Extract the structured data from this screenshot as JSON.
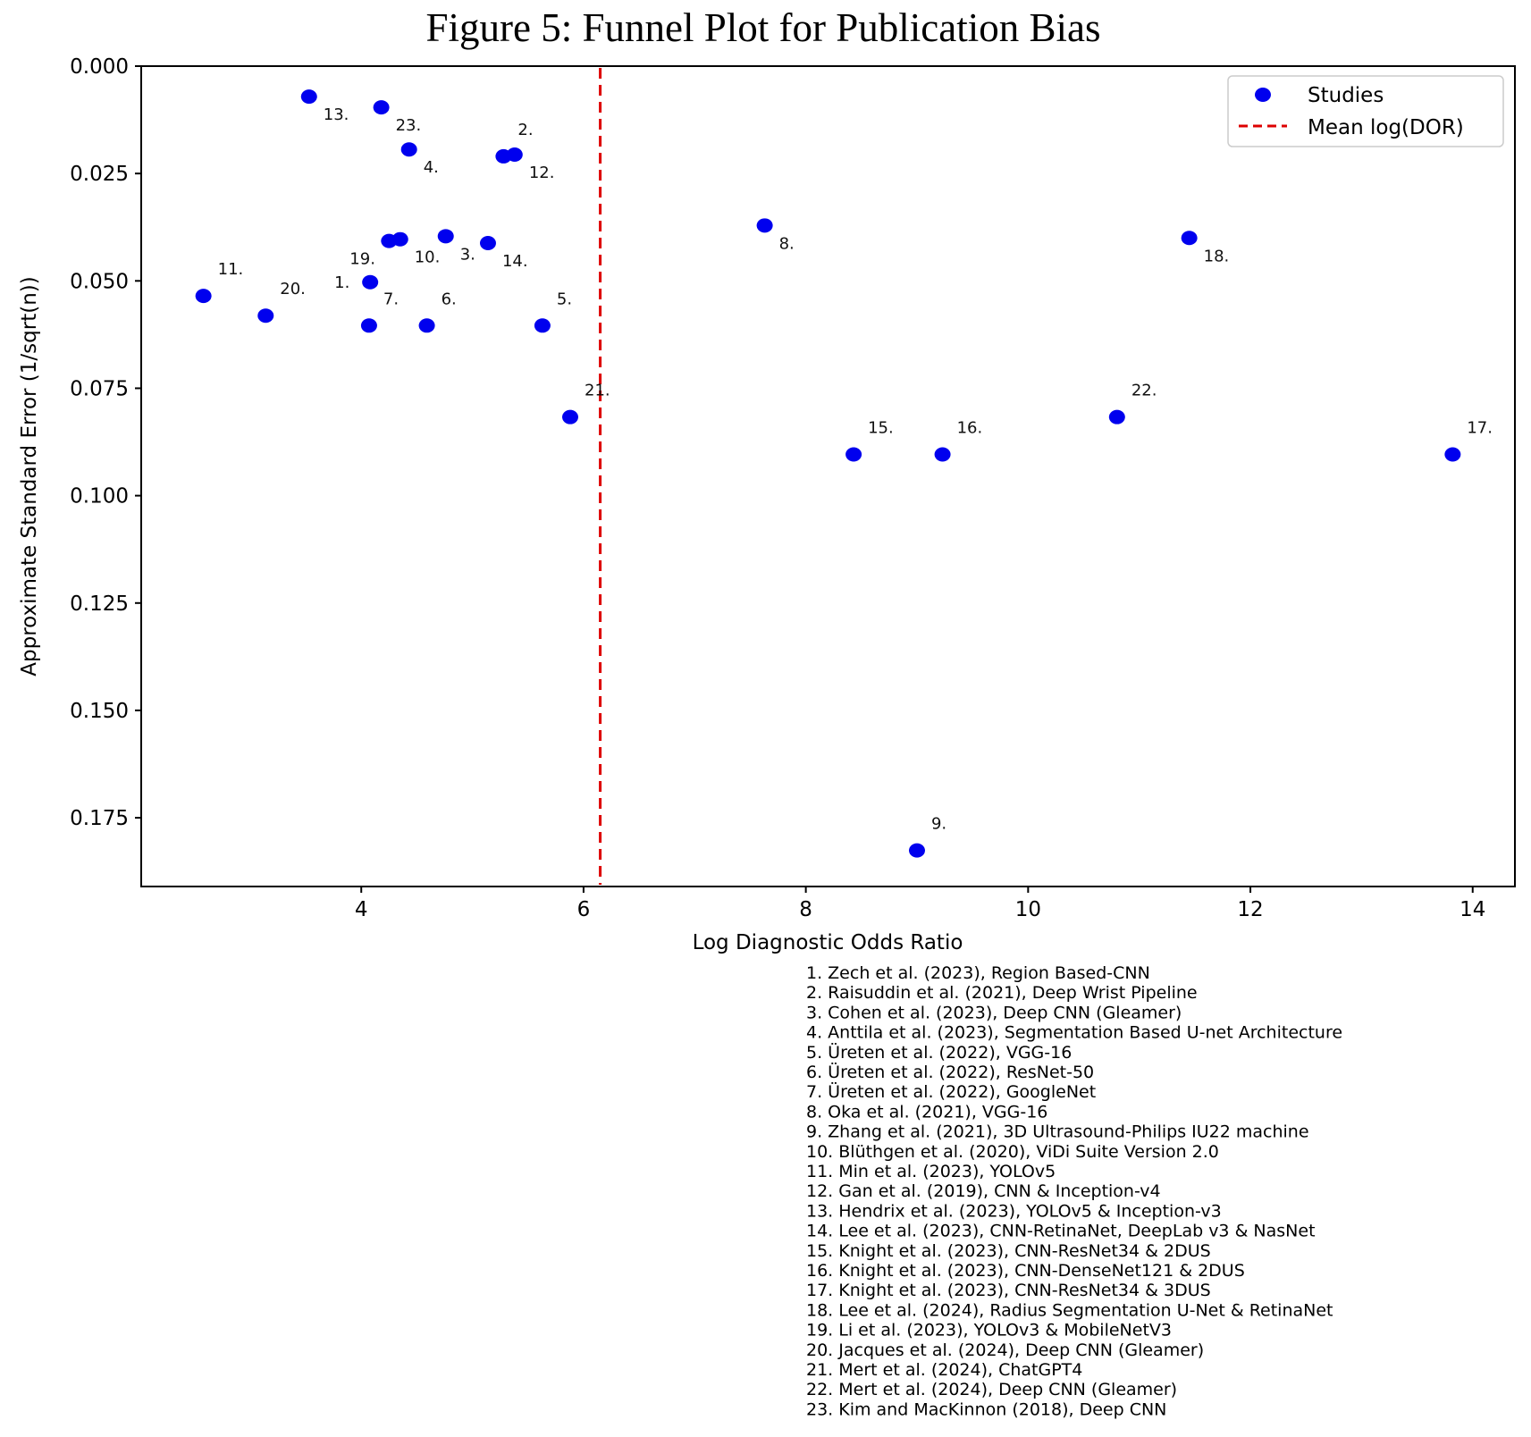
{
  "chart_data": {
    "type": "scatter",
    "title": "Figure 5: Funnel Plot for Publication Bias",
    "xlabel": "Log Diagnostic Odds Ratio",
    "ylabel": "Approximate Standard Error (1/sqrt(n))",
    "xlim": [
      2.02,
      14.38
    ],
    "ylim": [
      0.191,
      0.0
    ],
    "y_inverted": true,
    "x_ticks": [
      4,
      6,
      8,
      10,
      12,
      14
    ],
    "y_ticks": [
      "0.000",
      "0.025",
      "0.050",
      "0.075",
      "0.100",
      "0.125",
      "0.150",
      "0.175"
    ],
    "grid": false,
    "legend_position": "top-right",
    "legend": [
      "Studies",
      "Mean log(DOR)"
    ],
    "marker_color": "#0000ee",
    "mean_line_color": "#dd0000",
    "mean_log_dor": 6.15,
    "points": [
      {
        "label": "1.",
        "x": 4.08,
        "y": 0.0503,
        "label_pos": "below"
      },
      {
        "label": "2.",
        "x": 5.28,
        "y": 0.021,
        "label_pos": "below"
      },
      {
        "label": "3.",
        "x": 4.76,
        "y": 0.0396,
        "label_pos": "below"
      },
      {
        "label": "4.",
        "x": 4.43,
        "y": 0.0194,
        "label_pos": "below"
      },
      {
        "label": "5.",
        "x": 5.63,
        "y": 0.0604,
        "label_pos": "above"
      },
      {
        "label": "6.",
        "x": 4.59,
        "y": 0.0604,
        "label_pos": "above"
      },
      {
        "label": "7.",
        "x": 4.07,
        "y": 0.0604,
        "label_pos": "above"
      },
      {
        "label": "8.",
        "x": 7.63,
        "y": 0.0371,
        "label_pos": "below"
      },
      {
        "label": "9.",
        "x": 9.0,
        "y": 0.1826,
        "label_pos": "above"
      },
      {
        "label": "10.",
        "x": 4.35,
        "y": 0.0403,
        "label_pos": "below"
      },
      {
        "label": "11.",
        "x": 2.58,
        "y": 0.0535,
        "label_pos": "above"
      },
      {
        "label": "12.",
        "x": 5.38,
        "y": 0.0206,
        "label_pos": "below"
      },
      {
        "label": "13.",
        "x": 3.53,
        "y": 0.0071,
        "label_pos": "below"
      },
      {
        "label": "14.",
        "x": 5.14,
        "y": 0.0412,
        "label_pos": "below"
      },
      {
        "label": "15.",
        "x": 8.43,
        "y": 0.0904,
        "label_pos": "above"
      },
      {
        "label": "16.",
        "x": 9.23,
        "y": 0.0904,
        "label_pos": "above"
      },
      {
        "label": "17.",
        "x": 13.82,
        "y": 0.0904,
        "label_pos": "above"
      },
      {
        "label": "18.",
        "x": 11.45,
        "y": 0.04,
        "label_pos": "below"
      },
      {
        "label": "19.",
        "x": 4.25,
        "y": 0.0407,
        "label_pos": "below"
      },
      {
        "label": "20.",
        "x": 3.14,
        "y": 0.0581,
        "label_pos": "above"
      },
      {
        "label": "21.",
        "x": 5.88,
        "y": 0.0817,
        "label_pos": "above"
      },
      {
        "label": "22.",
        "x": 10.8,
        "y": 0.0817,
        "label_pos": "above"
      },
      {
        "label": "23.",
        "x": 4.18,
        "y": 0.0096,
        "label_pos": "below"
      }
    ]
  },
  "study_list": [
    "1. Zech et al. (2023), Region Based-CNN",
    "2. Raisuddin et al. (2021), Deep Wrist Pipeline",
    "3. Cohen et al. (2023), Deep CNN (Gleamer)",
    "4. Anttila et al. (2023), Segmentation Based U-net Architecture",
    "5. Üreten et al. (2022), VGG-16",
    "6. Üreten et al. (2022), ResNet-50",
    "7. Üreten et al. (2022), GoogleNet",
    "8. Oka et al. (2021), VGG-16",
    "9. Zhang et al. (2021), 3D Ultrasound-Philips IU22 machine",
    "10. Blüthgen et al. (2020), ViDi Suite Version 2.0",
    "11. Min et al. (2023), YOLOv5",
    "12. Gan et al. (2019), CNN & Inception-v4",
    "13. Hendrix et al. (2023), YOLOv5 & Inception-v3",
    "14. Lee et al. (2023), CNN-RetinaNet, DeepLab v3 & NasNet",
    "15. Knight et al. (2023), CNN-ResNet34 & 2DUS",
    "16. Knight et al. (2023), CNN-DenseNet121 & 2DUS",
    "17. Knight et al. (2023), CNN-ResNet34 & 3DUS",
    "18. Lee et al. (2024), Radius Segmentation U-Net & RetinaNet",
    "19. Li et al. (2023), YOLOv3 & MobileNetV3",
    "20. Jacques et al. (2024), Deep CNN (Gleamer)",
    "21. Mert et al. (2024), ChatGPT4",
    "22. Mert et al. (2024), Deep CNN (Gleamer)",
    "23. Kim and MacKinnon (2018), Deep CNN"
  ]
}
